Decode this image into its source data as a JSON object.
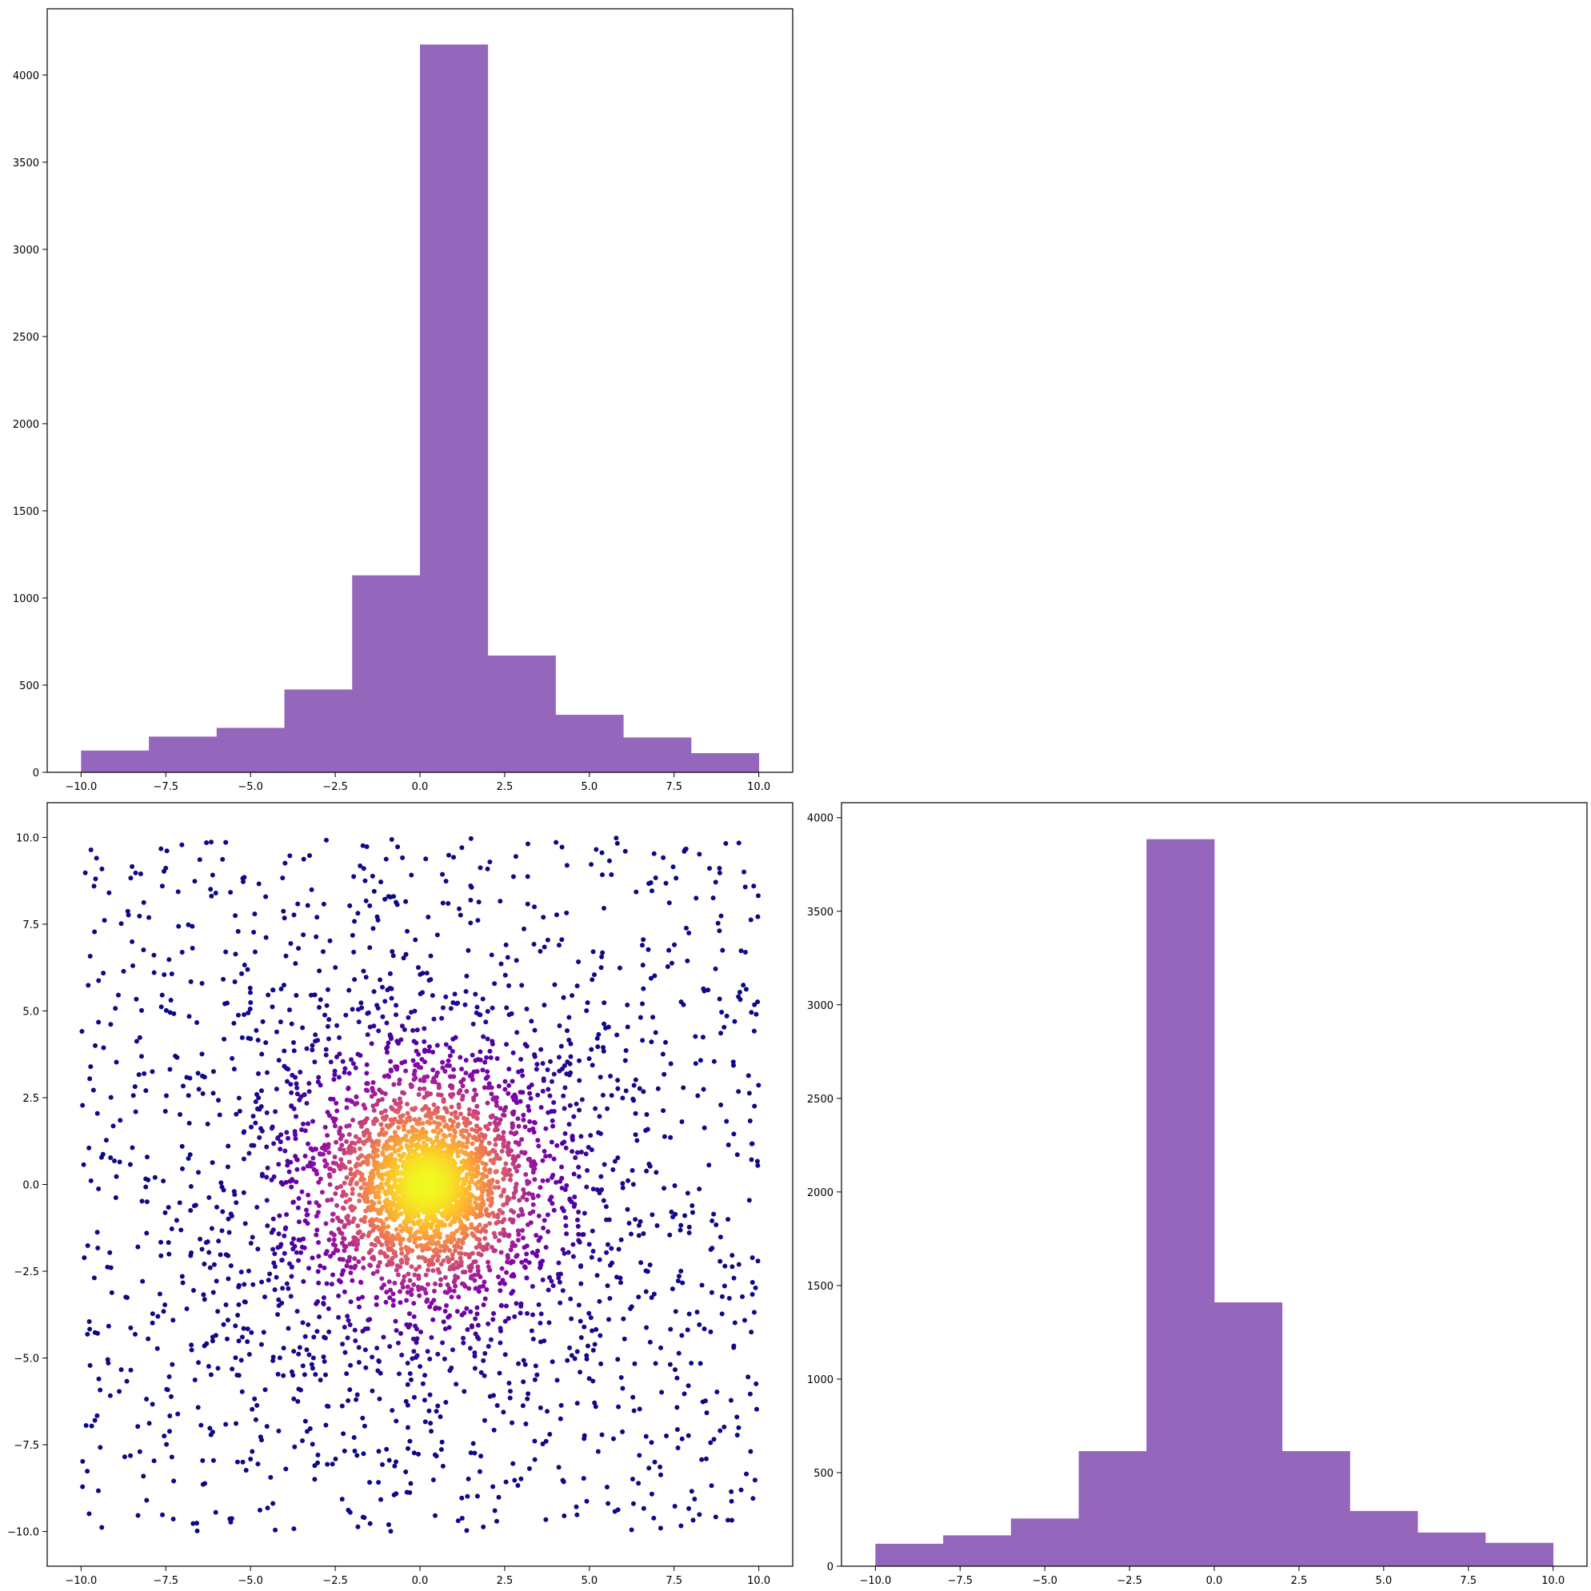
{
  "colors": {
    "bar": "#9467bd",
    "axis": "#000000",
    "background": "#ffffff",
    "scatter_colormap": "plasma"
  },
  "chart_data": [
    {
      "id": "hist-top",
      "type": "bar",
      "title": "",
      "xlabel": "",
      "ylabel": "",
      "bin_edges": [
        -10,
        -8,
        -6,
        -4,
        -2,
        0,
        2,
        4,
        6,
        8,
        10
      ],
      "values": [
        125,
        205,
        255,
        475,
        1130,
        4175,
        670,
        330,
        200,
        110
      ],
      "xlim": [
        -11,
        11
      ],
      "ylim": [
        0,
        4380
      ],
      "xticks": [
        -10,
        -7.5,
        -5,
        -2.5,
        0,
        2.5,
        5,
        7.5,
        10
      ],
      "xtick_labels": [
        "−10.0",
        "−7.5",
        "−5.0",
        "−2.5",
        "0.0",
        "2.5",
        "5.0",
        "7.5",
        "10.0"
      ],
      "yticks": [
        0,
        500,
        1000,
        1500,
        2000,
        2500,
        3000,
        3500,
        4000
      ],
      "ytick_labels": [
        "0",
        "500",
        "1000",
        "1500",
        "2000",
        "2500",
        "3000",
        "3500",
        "4000"
      ],
      "grid": false
    },
    {
      "id": "scatter",
      "type": "scatter",
      "title": "",
      "xlabel": "",
      "ylabel": "",
      "description_of_distribution": "about 5000 points: a dense core centred near (0.2, 0.0) spreading out, plus a uniform background over [-10, 10] x [-10, 10]; colour shows local density with the plasma colormap (dark purple sparse, yellow dense)",
      "center": [
        0.2,
        0.0
      ],
      "extent": [
        -10,
        10
      ],
      "xlim": [
        -11,
        11
      ],
      "ylim": [
        -11,
        11
      ],
      "xticks": [
        -10,
        -7.5,
        -5,
        -2.5,
        0,
        2.5,
        5,
        7.5,
        10
      ],
      "xtick_labels": [
        "−10.0",
        "−7.5",
        "−5.0",
        "−2.5",
        "0.0",
        "2.5",
        "5.0",
        "7.5",
        "10.0"
      ],
      "yticks": [
        -10,
        -7.5,
        -5,
        -2.5,
        0,
        2.5,
        5,
        7.5,
        10
      ],
      "ytick_labels": [
        "−10.0",
        "−7.5",
        "−5.0",
        "−2.5",
        "0.0",
        "2.5",
        "5.0",
        "7.5",
        "10.0"
      ],
      "grid": false
    },
    {
      "id": "hist-right",
      "type": "bar",
      "title": "",
      "xlabel": "",
      "ylabel": "",
      "bin_edges": [
        -10,
        -8,
        -6,
        -4,
        -2,
        0,
        2,
        4,
        6,
        8,
        10
      ],
      "values": [
        120,
        165,
        255,
        615,
        3885,
        1410,
        615,
        295,
        180,
        125
      ],
      "xlim": [
        -11,
        11
      ],
      "ylim": [
        0,
        4080
      ],
      "xticks": [
        -10,
        -7.5,
        -5,
        -2.5,
        0,
        2.5,
        5,
        7.5,
        10
      ],
      "xtick_labels": [
        "−10.0",
        "−7.5",
        "−5.0",
        "−2.5",
        "0.0",
        "2.5",
        "5.0",
        "7.5",
        "10.0"
      ],
      "yticks": [
        0,
        500,
        1000,
        1500,
        2000,
        2500,
        3000,
        3500,
        4000
      ],
      "ytick_labels": [
        "0",
        "500",
        "1000",
        "1500",
        "2000",
        "2500",
        "3000",
        "3500",
        "4000"
      ],
      "grid": false
    }
  ]
}
